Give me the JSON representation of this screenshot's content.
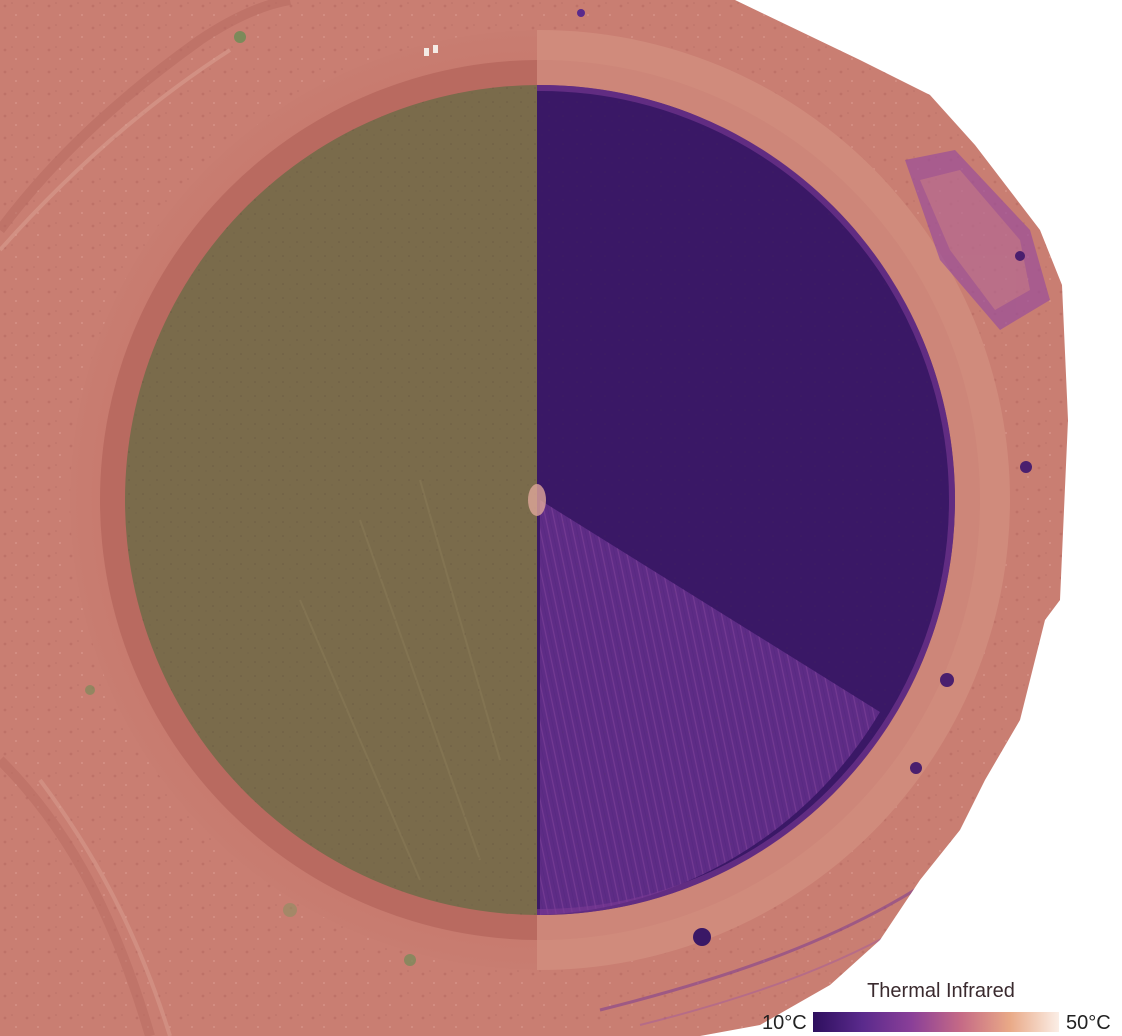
{
  "image": {
    "subject": "center-pivot-field-aerial",
    "left_half": "visible-rgb",
    "right_half": "thermal-colormap"
  },
  "legend": {
    "title": "Thermal Infrared",
    "min_label": "10°C",
    "max_label": "50°C",
    "colormap": [
      "#2e0f5e",
      "#5a2a8c",
      "#8a3f98",
      "#c56a86",
      "#e9a987",
      "#fbeee6"
    ]
  },
  "colors": {
    "background_soil": "#c97e72",
    "soil_dark": "#b8695f",
    "crop_rgb": "#7a6b4b",
    "crop_thermal_cool": "#3a1866",
    "crop_thermal_warm": "#6d3a93",
    "ring_track": "#cf8a7d",
    "page_bg": "#ffffff"
  }
}
